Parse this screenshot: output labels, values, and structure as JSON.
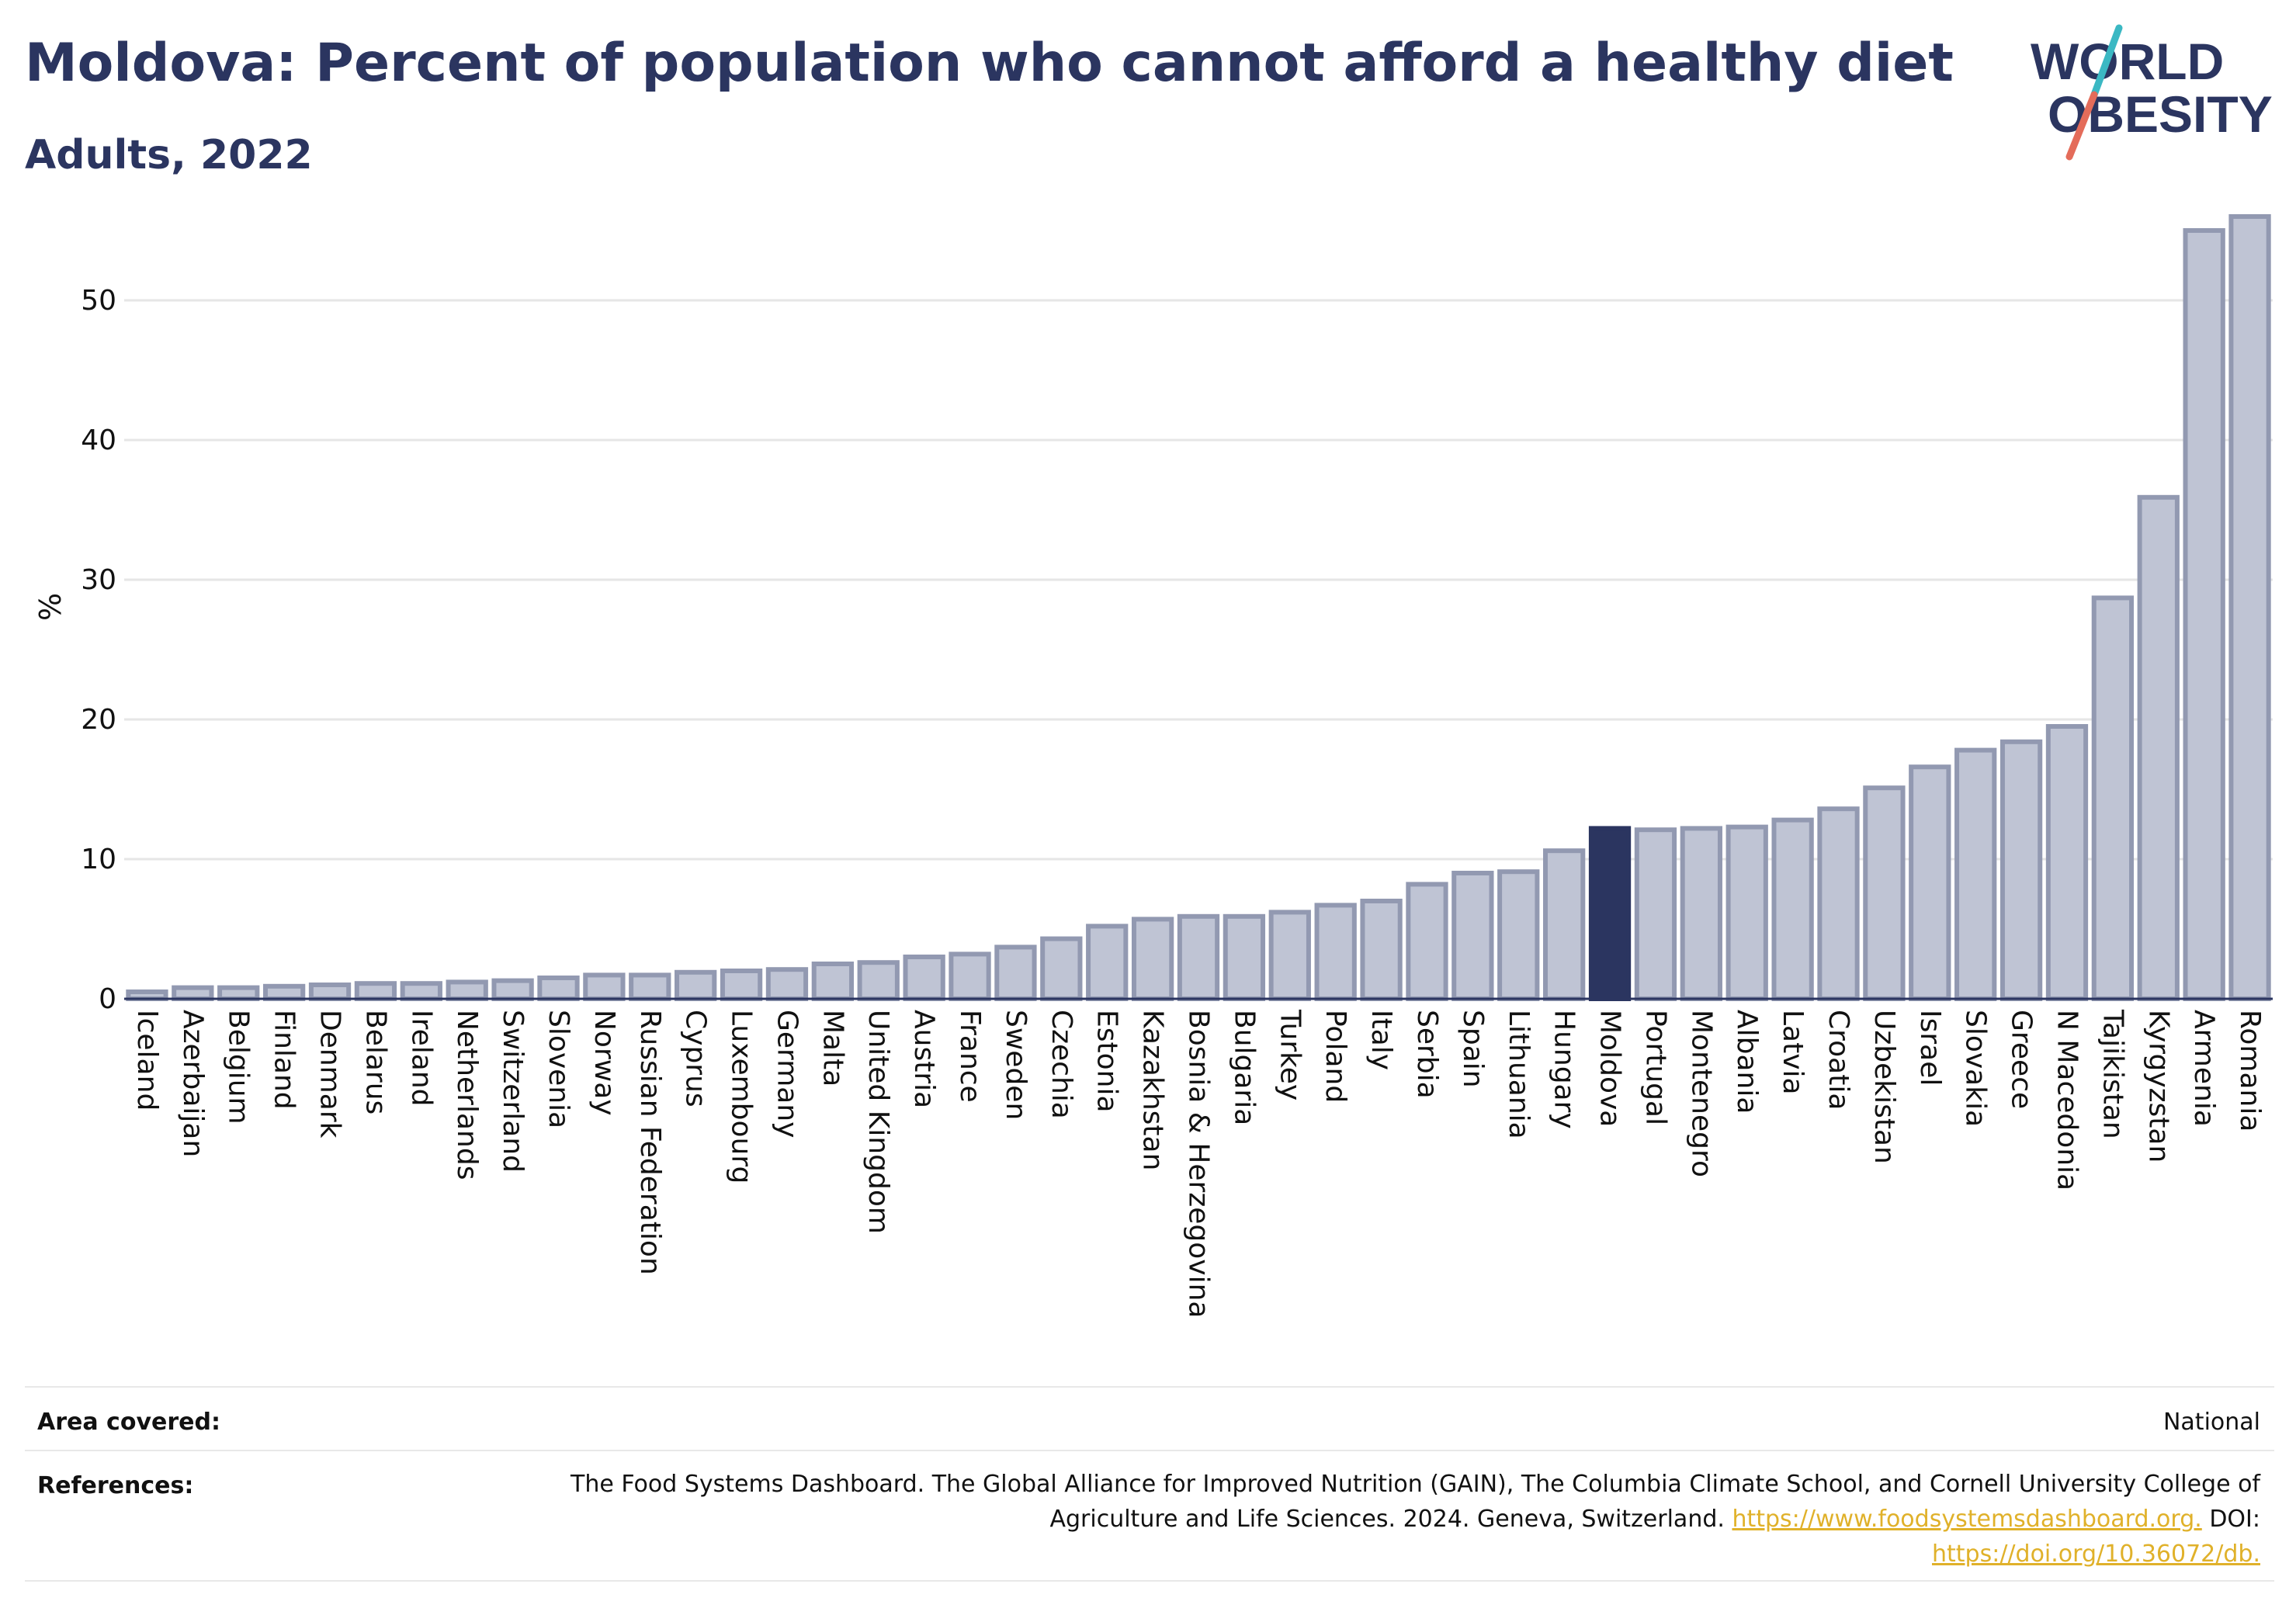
{
  "title": "Moldova: Percent of population who cannot afford a healthy diet",
  "subtitle": "Adults, 2022",
  "logo": {
    "line1": "WORLD",
    "line2": "OBESITY",
    "stroke_colors": [
      "#3bb8c3",
      "#e46c5a"
    ]
  },
  "colors": {
    "bar": "#bfc4d4",
    "bar_outline": "#9299b1",
    "highlight": "#2b3560",
    "grid": "#e6e6e6",
    "text": "#2b3560"
  },
  "chart_data": {
    "type": "bar",
    "title": "Moldova: Percent of population who cannot afford a healthy diet",
    "subtitle": "Adults, 2022",
    "ylabel": "%",
    "xlabel": "",
    "ylim": [
      0,
      58
    ],
    "yticks": [
      0,
      10,
      20,
      30,
      40,
      50
    ],
    "grid": true,
    "highlight": "Moldova",
    "categories": [
      "Iceland",
      "Azerbaijan",
      "Belgium",
      "Finland",
      "Denmark",
      "Belarus",
      "Ireland",
      "Netherlands",
      "Switzerland",
      "Slovenia",
      "Norway",
      "Russian Federation",
      "Cyprus",
      "Luxembourg",
      "Germany",
      "Malta",
      "United Kingdom",
      "Austria",
      "France",
      "Sweden",
      "Czechia",
      "Estonia",
      "Kazakhstan",
      "Bosnia & Herzegovina",
      "Bulgaria",
      "Turkey",
      "Poland",
      "Italy",
      "Serbia",
      "Spain",
      "Lithuania",
      "Hungary",
      "Moldova",
      "Portugal",
      "Montenegro",
      "Albania",
      "Latvia",
      "Croatia",
      "Uzbekistan",
      "Israel",
      "Slovakia",
      "Greece",
      "N Macedonia",
      "Tajikistan",
      "Kyrgyzstan",
      "Armenia",
      "Romania"
    ],
    "values": [
      0.5,
      0.8,
      0.8,
      0.9,
      1.0,
      1.1,
      1.1,
      1.2,
      1.3,
      1.5,
      1.7,
      1.7,
      1.9,
      2.0,
      2.1,
      2.5,
      2.6,
      3.0,
      3.2,
      3.7,
      4.3,
      5.2,
      5.7,
      5.9,
      5.9,
      6.2,
      6.7,
      7.0,
      8.2,
      9.0,
      9.1,
      10.6,
      12.2,
      12.1,
      12.2,
      12.3,
      12.8,
      13.6,
      15.1,
      16.6,
      17.8,
      18.4,
      19.5,
      28.7,
      35.9,
      55.0,
      56.0
    ]
  },
  "footer": {
    "area_label": "Area covered:",
    "area_value": "National",
    "references_label": "References:",
    "references_text": "The Food Systems Dashboard. The Global Alliance for Improved Nutrition (GAIN), The Columbia Climate School, and Cornell University College of Agriculture and Life Sciences. 2024. Geneva, Switzerland.",
    "references_link": "https://www.foodsystemsdashboard.org.",
    "doi_label": "DOI:",
    "doi_link": "https://doi.org/10.36072/db."
  }
}
